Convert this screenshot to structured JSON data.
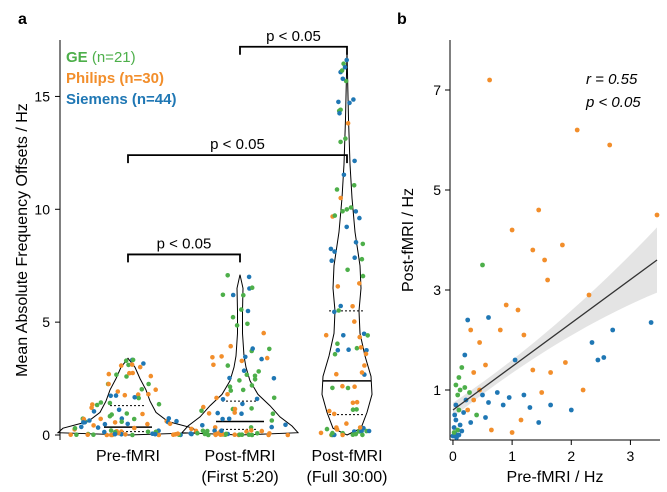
{
  "panels": {
    "a": "a",
    "b": "b"
  },
  "colors": {
    "ge": "#4daf4a",
    "philips": "#f28e2b",
    "siemens": "#1f77b4",
    "line": "#333333",
    "band": "#d9d9d9"
  },
  "chart_data": [
    {
      "type": "violin",
      "panel": "a",
      "ylabel": "Mean Absolute Frequency Offsets / Hz",
      "ylim": [
        0,
        17.5
      ],
      "yticks": [
        0,
        5,
        10,
        15
      ],
      "categories": [
        {
          "line1": "Pre-fMRI",
          "line2": ""
        },
        {
          "line1": "Post-fMRI",
          "line2": "(First 5:20)"
        },
        {
          "line1": "Post-fMRI",
          "line2": "(Full 30:00)"
        }
      ],
      "legend": [
        {
          "key": "ge",
          "name": "GE",
          "count": "(n=21)"
        },
        {
          "key": "philips",
          "name": "Philips",
          "count": "(n=30)"
        },
        {
          "key": "siemens",
          "name": "Siemens",
          "count": "(n=44)"
        }
      ],
      "medians": [
        0.35,
        0.6,
        2.4
      ],
      "quartiles": [
        [
          0.15,
          1.3
        ],
        [
          0.25,
          1.5
        ],
        [
          0.9,
          5.5
        ]
      ],
      "maxima": [
        3.4,
        7.1,
        17.0
      ],
      "significance": [
        {
          "from": 0,
          "to": 1,
          "y": 8.0,
          "label": "p < 0.05"
        },
        {
          "from": 0,
          "to": 2,
          "y": 12.4,
          "label": "p < 0.05"
        },
        {
          "from": 1,
          "to": 2,
          "y": 17.2,
          "label": "p < 0.05"
        }
      ]
    },
    {
      "type": "scatter",
      "panel": "b",
      "xlabel": "Pre-fMRI / Hz",
      "ylabel": "Post-fMRI / Hz",
      "xlim": [
        -0.05,
        3.5
      ],
      "ylim": [
        0,
        8
      ],
      "xticks": [
        0,
        1,
        2,
        3
      ],
      "yticks": [
        1,
        3,
        5,
        7
      ],
      "r_label": "r = 0.55",
      "p_label": "p < 0.05",
      "fit": {
        "x": [
          0,
          3.45
        ],
        "y": [
          0.6,
          3.6
        ]
      },
      "points": [
        {
          "x": 0.62,
          "y": 7.2,
          "c": "philips"
        },
        {
          "x": 2.1,
          "y": 6.2,
          "c": "philips"
        },
        {
          "x": 2.65,
          "y": 5.9,
          "c": "philips"
        },
        {
          "x": 3.45,
          "y": 4.5,
          "c": "philips"
        },
        {
          "x": 1.45,
          "y": 4.6,
          "c": "philips"
        },
        {
          "x": 1.0,
          "y": 4.2,
          "c": "philips"
        },
        {
          "x": 1.85,
          "y": 3.9,
          "c": "philips"
        },
        {
          "x": 1.35,
          "y": 3.8,
          "c": "philips"
        },
        {
          "x": 1.55,
          "y": 3.6,
          "c": "philips"
        },
        {
          "x": 0.5,
          "y": 3.5,
          "c": "ge"
        },
        {
          "x": 1.6,
          "y": 3.2,
          "c": "philips"
        },
        {
          "x": 2.3,
          "y": 2.9,
          "c": "philips"
        },
        {
          "x": 0.9,
          "y": 2.7,
          "c": "philips"
        },
        {
          "x": 1.1,
          "y": 2.6,
          "c": "philips"
        },
        {
          "x": 0.25,
          "y": 2.4,
          "c": "siemens"
        },
        {
          "x": 0.6,
          "y": 2.45,
          "c": "siemens"
        },
        {
          "x": 3.35,
          "y": 2.35,
          "c": "siemens"
        },
        {
          "x": 0.3,
          "y": 2.2,
          "c": "philips"
        },
        {
          "x": 0.8,
          "y": 2.2,
          "c": "philips"
        },
        {
          "x": 1.2,
          "y": 2.1,
          "c": "philips"
        },
        {
          "x": 2.7,
          "y": 2.2,
          "c": "siemens"
        },
        {
          "x": 0.45,
          "y": 1.95,
          "c": "philips"
        },
        {
          "x": 2.35,
          "y": 1.95,
          "c": "siemens"
        },
        {
          "x": 0.2,
          "y": 1.7,
          "c": "siemens"
        },
        {
          "x": 1.05,
          "y": 1.6,
          "c": "siemens"
        },
        {
          "x": 2.55,
          "y": 1.65,
          "c": "siemens"
        },
        {
          "x": 0.55,
          "y": 1.5,
          "c": "philips"
        },
        {
          "x": 2.45,
          "y": 1.6,
          "c": "siemens"
        },
        {
          "x": 0.15,
          "y": 1.45,
          "c": "ge"
        },
        {
          "x": 1.9,
          "y": 1.55,
          "c": "philips"
        },
        {
          "x": 0.35,
          "y": 1.35,
          "c": "philips"
        },
        {
          "x": 1.35,
          "y": 1.4,
          "c": "philips"
        },
        {
          "x": 1.65,
          "y": 1.35,
          "c": "philips"
        },
        {
          "x": 0.1,
          "y": 1.25,
          "c": "ge"
        },
        {
          "x": 0.05,
          "y": 1.1,
          "c": "ge"
        },
        {
          "x": 0.12,
          "y": 1.0,
          "c": "ge"
        },
        {
          "x": 0.2,
          "y": 1.05,
          "c": "ge"
        },
        {
          "x": 0.28,
          "y": 0.95,
          "c": "ge"
        },
        {
          "x": 0.45,
          "y": 1.0,
          "c": "philips"
        },
        {
          "x": 0.5,
          "y": 0.9,
          "c": "siemens"
        },
        {
          "x": 0.75,
          "y": 0.95,
          "c": "siemens"
        },
        {
          "x": 0.95,
          "y": 0.85,
          "c": "siemens"
        },
        {
          "x": 1.2,
          "y": 0.9,
          "c": "siemens"
        },
        {
          "x": 1.5,
          "y": 0.95,
          "c": "philips"
        },
        {
          "x": 2.2,
          "y": 1.0,
          "c": "philips"
        },
        {
          "x": 0.35,
          "y": 0.8,
          "c": "philips"
        },
        {
          "x": 0.6,
          "y": 0.75,
          "c": "siemens"
        },
        {
          "x": 0.85,
          "y": 0.7,
          "c": "siemens"
        },
        {
          "x": 1.3,
          "y": 0.65,
          "c": "siemens"
        },
        {
          "x": 1.65,
          "y": 0.7,
          "c": "siemens"
        },
        {
          "x": 2.0,
          "y": 0.6,
          "c": "siemens"
        },
        {
          "x": 0.05,
          "y": 0.7,
          "c": "siemens"
        },
        {
          "x": 0.1,
          "y": 0.6,
          "c": "ge"
        },
        {
          "x": 0.18,
          "y": 0.55,
          "c": "siemens"
        },
        {
          "x": 0.25,
          "y": 0.6,
          "c": "philips"
        },
        {
          "x": 0.4,
          "y": 0.5,
          "c": "ge"
        },
        {
          "x": 0.55,
          "y": 0.45,
          "c": "siemens"
        },
        {
          "x": 1.15,
          "y": 0.4,
          "c": "philips"
        },
        {
          "x": 1.45,
          "y": 0.35,
          "c": "siemens"
        },
        {
          "x": 0.3,
          "y": 0.35,
          "c": "siemens"
        },
        {
          "x": 0.05,
          "y": 0.4,
          "c": "siemens"
        },
        {
          "x": 0.12,
          "y": 0.3,
          "c": "siemens"
        },
        {
          "x": 0.02,
          "y": 0.25,
          "c": "siemens"
        },
        {
          "x": 0.08,
          "y": 0.2,
          "c": "ge"
        },
        {
          "x": 0.15,
          "y": 0.18,
          "c": "siemens"
        },
        {
          "x": 0.04,
          "y": 0.12,
          "c": "siemens"
        },
        {
          "x": 0.1,
          "y": 0.1,
          "c": "siemens"
        },
        {
          "x": 0.0,
          "y": 0.08,
          "c": "siemens"
        },
        {
          "x": 0.06,
          "y": 0.05,
          "c": "siemens"
        },
        {
          "x": 0.02,
          "y": 0.15,
          "c": "ge"
        },
        {
          "x": 0.65,
          "y": 0.2,
          "c": "philips"
        },
        {
          "x": 1.0,
          "y": 0.15,
          "c": "philips"
        },
        {
          "x": 0.03,
          "y": 0.5,
          "c": "siemens"
        },
        {
          "x": 0.22,
          "y": 0.8,
          "c": "siemens"
        },
        {
          "x": 0.08,
          "y": 0.9,
          "c": "ge"
        }
      ]
    }
  ]
}
